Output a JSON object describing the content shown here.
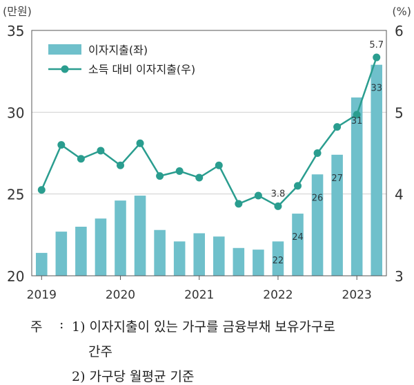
{
  "chart_data": {
    "type": "bar+line",
    "title": "",
    "left_unit": "(만원)",
    "right_unit": "(%)",
    "left_ylim": [
      20,
      35
    ],
    "left_ticks": [
      "20",
      "25",
      "30",
      "35"
    ],
    "right_ylim": [
      3,
      6
    ],
    "right_ticks": [
      "3",
      "4",
      "5",
      "6"
    ],
    "x_tick_labels": [
      "2019",
      "2020",
      "2021",
      "2022",
      "2023"
    ],
    "x_tick_positions": [
      0,
      4,
      8,
      12,
      16
    ],
    "grid": true,
    "legend_position": "top-left",
    "series": [
      {
        "name": "이자지출(좌)",
        "type": "bar",
        "axis": "left",
        "color": "#6fc0cb",
        "values": [
          21.4,
          22.7,
          23.0,
          23.5,
          24.6,
          24.9,
          22.8,
          22.1,
          22.6,
          22.4,
          21.7,
          21.6,
          22.1,
          23.8,
          26.2,
          27.4,
          30.9,
          32.9
        ],
        "data_labels": {
          "12": "22",
          "13": "24",
          "14": "26",
          "15": "27",
          "16": "31",
          "17": "33"
        }
      },
      {
        "name": "소득 대비 이자지출(우)",
        "type": "line",
        "axis": "right",
        "color": "#2a9d8f",
        "values": [
          4.05,
          4.6,
          4.43,
          4.53,
          4.35,
          4.62,
          4.22,
          4.28,
          4.2,
          4.35,
          3.88,
          3.98,
          3.85,
          4.1,
          4.5,
          4.82,
          4.97,
          5.67
        ],
        "data_labels": {
          "12": "3.8",
          "17": "5.7"
        }
      }
    ]
  },
  "notes": {
    "label": "주",
    "colon": ":",
    "note1": "1) 이자지출이 있는 가구를 금융부채 보유가구로",
    "note1_cont": "간주",
    "note2": "2) 가구당 월평균 기준"
  }
}
